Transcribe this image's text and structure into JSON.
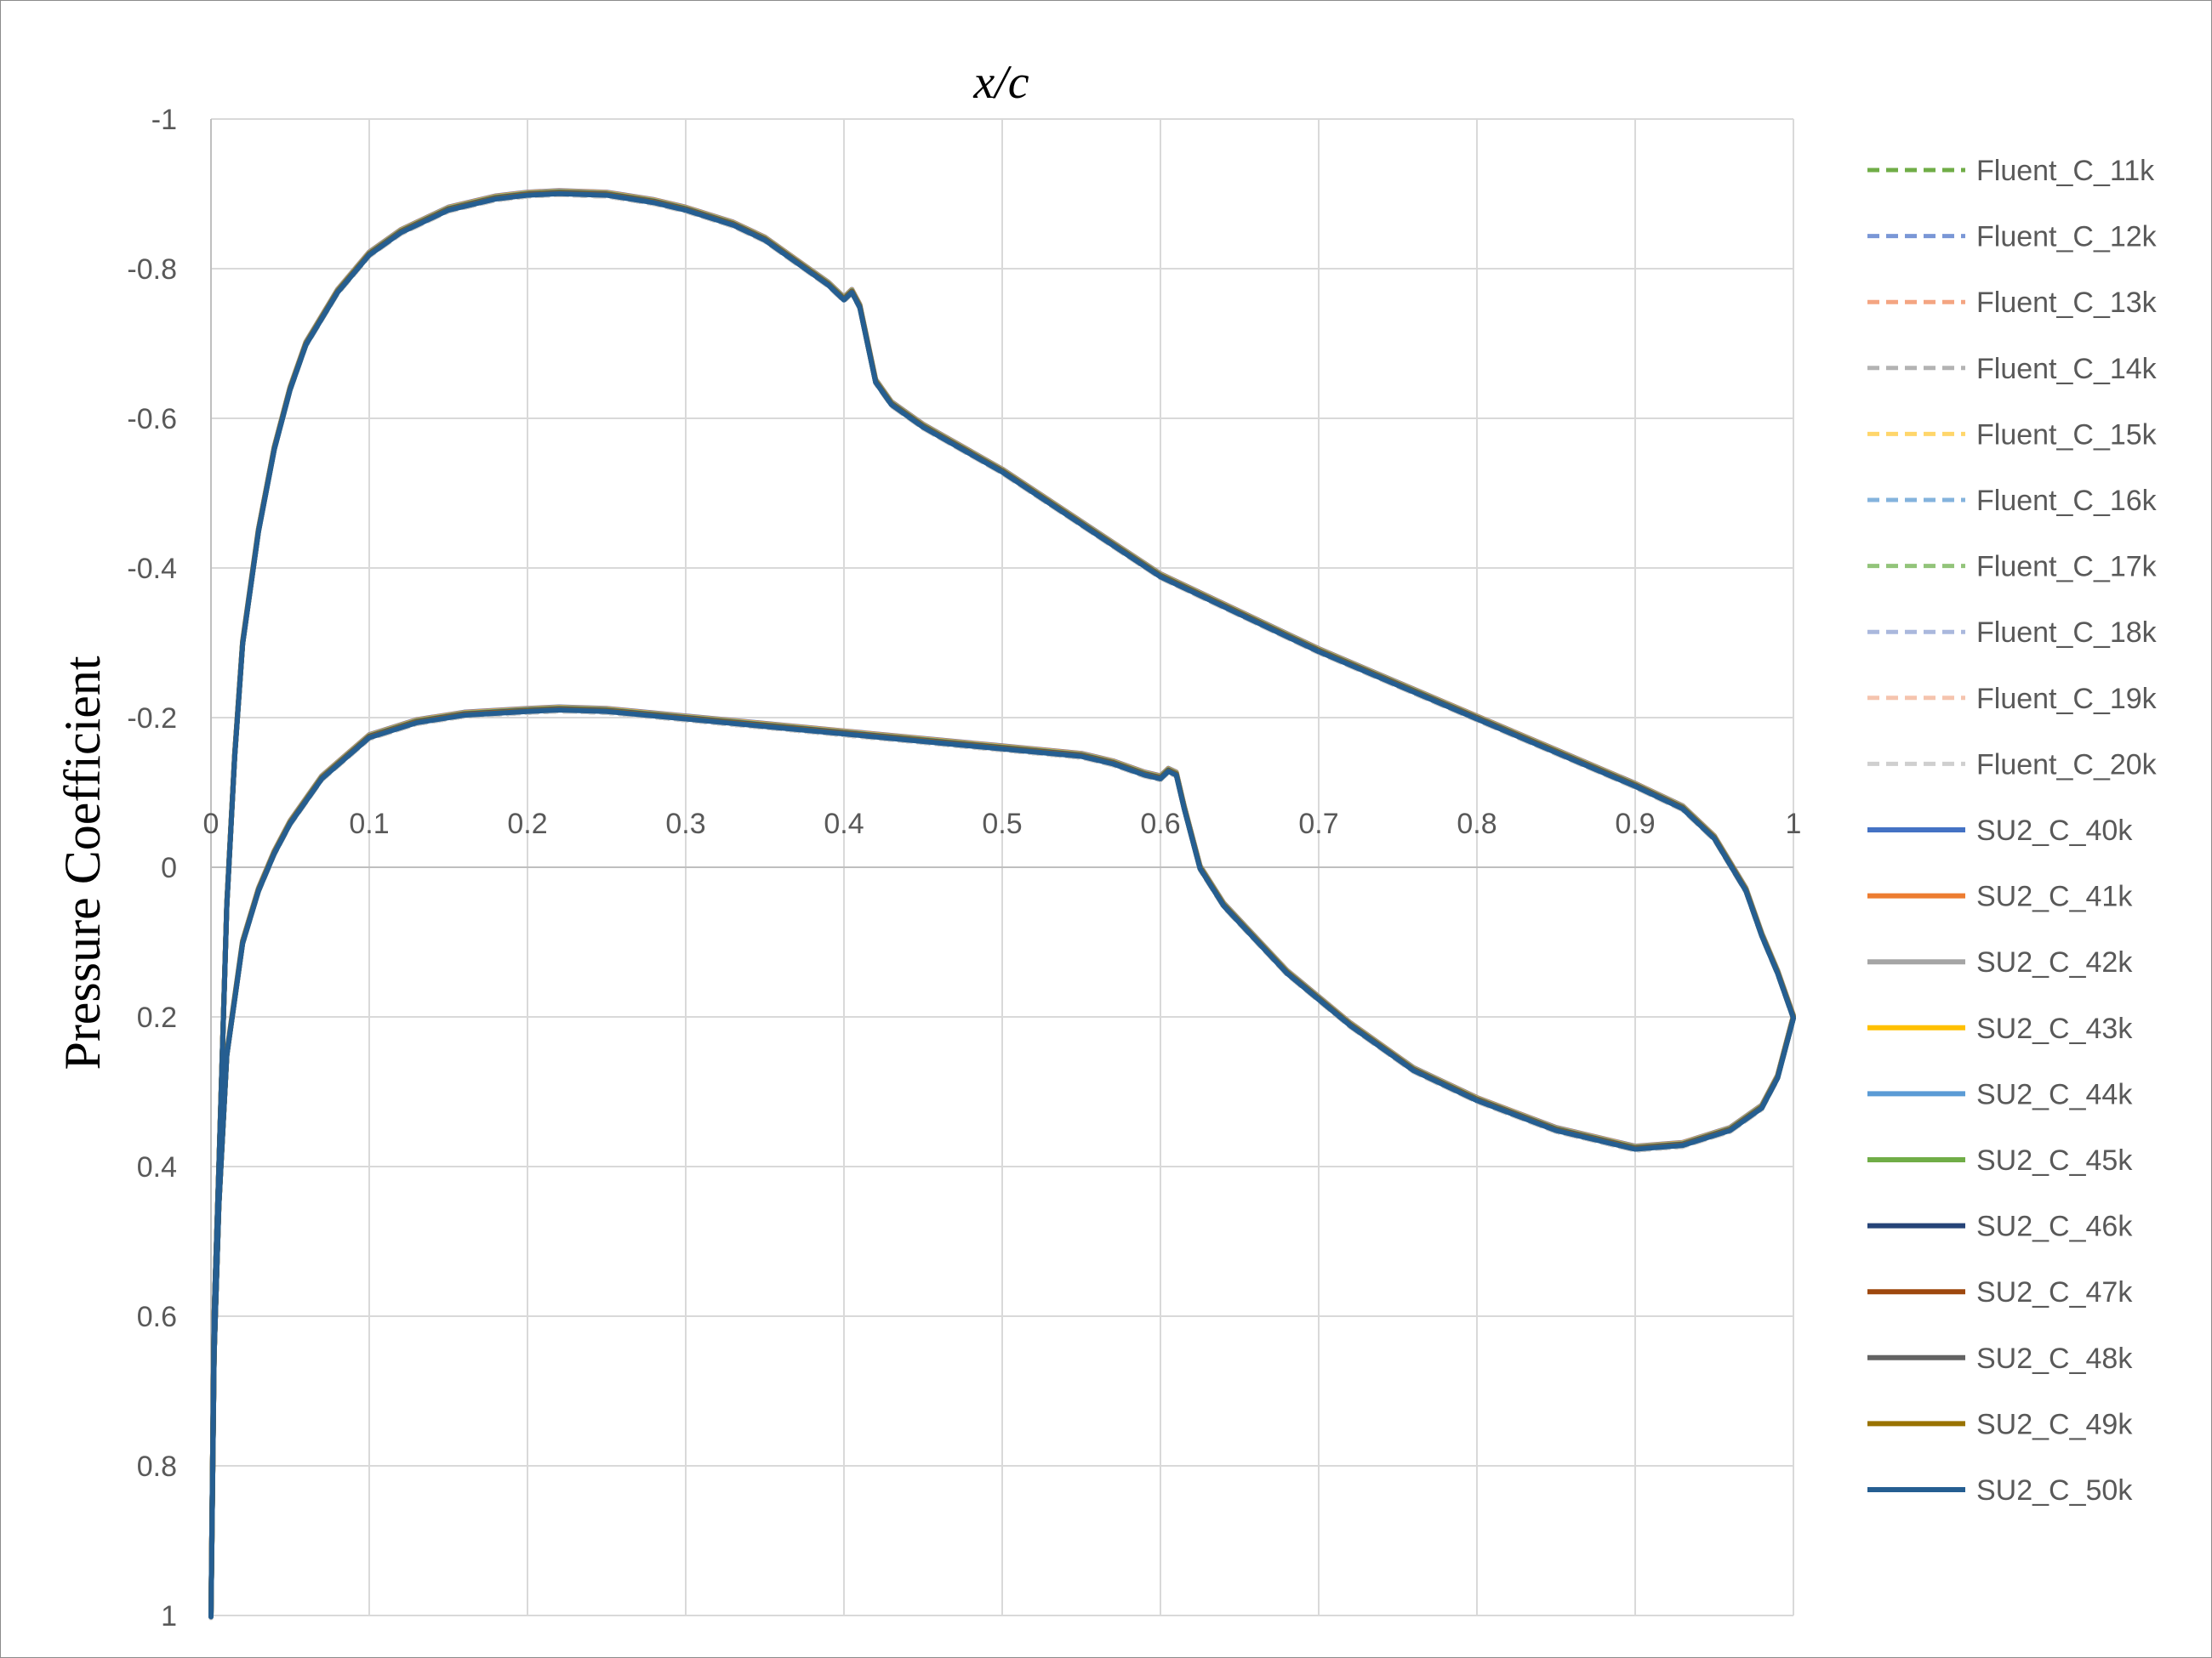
{
  "chart_data": {
    "type": "line",
    "title": "",
    "xlabel": "x/c",
    "ylabel": "Pressure Coefficient",
    "xlim": [
      0,
      1
    ],
    "ylim": [
      -1,
      1
    ],
    "y_axis_inverted": true,
    "x_ticks": [
      "0",
      "0.1",
      "0.2",
      "0.3",
      "0.4",
      "0.5",
      "0.6",
      "0.7",
      "0.8",
      "0.9",
      "1"
    ],
    "y_ticks": [
      "-1",
      "-0.8",
      "-0.6",
      "-0.4",
      "-0.2",
      "0",
      "0.2",
      "0.4",
      "0.6",
      "0.8",
      "1"
    ],
    "grid": true,
    "legend_position": "right",
    "reference_curve": {
      "upper_surface": {
        "x": [
          0,
          0.002,
          0.005,
          0.01,
          0.015,
          0.02,
          0.03,
          0.04,
          0.05,
          0.06,
          0.08,
          0.1,
          0.12,
          0.15,
          0.18,
          0.2,
          0.22,
          0.25,
          0.28,
          0.3,
          0.33,
          0.35,
          0.37,
          0.39,
          0.4,
          0.405,
          0.41,
          0.415,
          0.42,
          0.43,
          0.45,
          0.5,
          0.55,
          0.6,
          0.65,
          0.7,
          0.75,
          0.8,
          0.85,
          0.9,
          0.93,
          0.95,
          0.97,
          0.98,
          0.99,
          1.0
        ],
        "y": [
          1.0,
          0.6,
          0.4,
          0.05,
          -0.15,
          -0.3,
          -0.45,
          -0.56,
          -0.64,
          -0.7,
          -0.77,
          -0.82,
          -0.85,
          -0.88,
          -0.895,
          -0.9,
          -0.902,
          -0.9,
          -0.89,
          -0.88,
          -0.86,
          -0.84,
          -0.81,
          -0.78,
          -0.76,
          -0.77,
          -0.75,
          -0.7,
          -0.65,
          -0.62,
          -0.59,
          -0.53,
          -0.46,
          -0.39,
          -0.34,
          -0.29,
          -0.245,
          -0.2,
          -0.155,
          -0.11,
          -0.08,
          -0.04,
          0.03,
          0.09,
          0.14,
          0.2
        ]
      },
      "lower_surface": {
        "x": [
          0,
          0.002,
          0.005,
          0.01,
          0.02,
          0.03,
          0.04,
          0.05,
          0.07,
          0.1,
          0.13,
          0.16,
          0.2,
          0.22,
          0.25,
          0.3,
          0.35,
          0.4,
          0.45,
          0.5,
          0.55,
          0.57,
          0.59,
          0.6,
          0.605,
          0.61,
          0.615,
          0.625,
          0.64,
          0.68,
          0.72,
          0.76,
          0.8,
          0.85,
          0.9,
          0.93,
          0.96,
          0.98,
          0.99,
          1.0
        ],
        "y": [
          1.0,
          0.65,
          0.45,
          0.25,
          0.1,
          0.03,
          -0.02,
          -0.06,
          -0.12,
          -0.175,
          -0.195,
          -0.205,
          -0.21,
          -0.212,
          -0.21,
          -0.2,
          -0.19,
          -0.18,
          -0.17,
          -0.16,
          -0.15,
          -0.14,
          -0.125,
          -0.12,
          -0.13,
          -0.125,
          -0.08,
          0.0,
          0.05,
          0.14,
          0.21,
          0.27,
          0.31,
          0.35,
          0.375,
          0.37,
          0.35,
          0.32,
          0.28,
          0.2
        ]
      }
    },
    "series": [
      {
        "name": "Fluent_C_11k",
        "color": "#70ad47",
        "dash": "dashed"
      },
      {
        "name": "Fluent_C_12k",
        "color": "#7a97d6",
        "dash": "dashed"
      },
      {
        "name": "Fluent_C_13k",
        "color": "#f4a582",
        "dash": "dashed"
      },
      {
        "name": "Fluent_C_14k",
        "color": "#b3b3b3",
        "dash": "dashed"
      },
      {
        "name": "Fluent_C_15k",
        "color": "#ffd66b",
        "dash": "dashed"
      },
      {
        "name": "Fluent_C_16k",
        "color": "#84b3dd",
        "dash": "dashed"
      },
      {
        "name": "Fluent_C_17k",
        "color": "#92c47a",
        "dash": "dashed"
      },
      {
        "name": "Fluent_C_18k",
        "color": "#aab8dd",
        "dash": "dashed"
      },
      {
        "name": "Fluent_C_19k",
        "color": "#f5c4ae",
        "dash": "dashed"
      },
      {
        "name": "Fluent_C_20k",
        "color": "#cfcfcf",
        "dash": "dashed"
      },
      {
        "name": "SU2_C_40k",
        "color": "#4472c4",
        "dash": "solid"
      },
      {
        "name": "SU2_C_41k",
        "color": "#ed7d31",
        "dash": "solid"
      },
      {
        "name": "SU2_C_42k",
        "color": "#a5a5a5",
        "dash": "solid"
      },
      {
        "name": "SU2_C_43k",
        "color": "#ffc000",
        "dash": "solid"
      },
      {
        "name": "SU2_C_44k",
        "color": "#5b9bd5",
        "dash": "solid"
      },
      {
        "name": "SU2_C_45k",
        "color": "#70ad47",
        "dash": "solid"
      },
      {
        "name": "SU2_C_46k",
        "color": "#264478",
        "dash": "solid"
      },
      {
        "name": "SU2_C_47k",
        "color": "#9e480e",
        "dash": "solid"
      },
      {
        "name": "SU2_C_48k",
        "color": "#636363",
        "dash": "solid"
      },
      {
        "name": "SU2_C_49k",
        "color": "#997300",
        "dash": "solid"
      },
      {
        "name": "SU2_C_50k",
        "color": "#255e91",
        "dash": "solid"
      }
    ]
  }
}
